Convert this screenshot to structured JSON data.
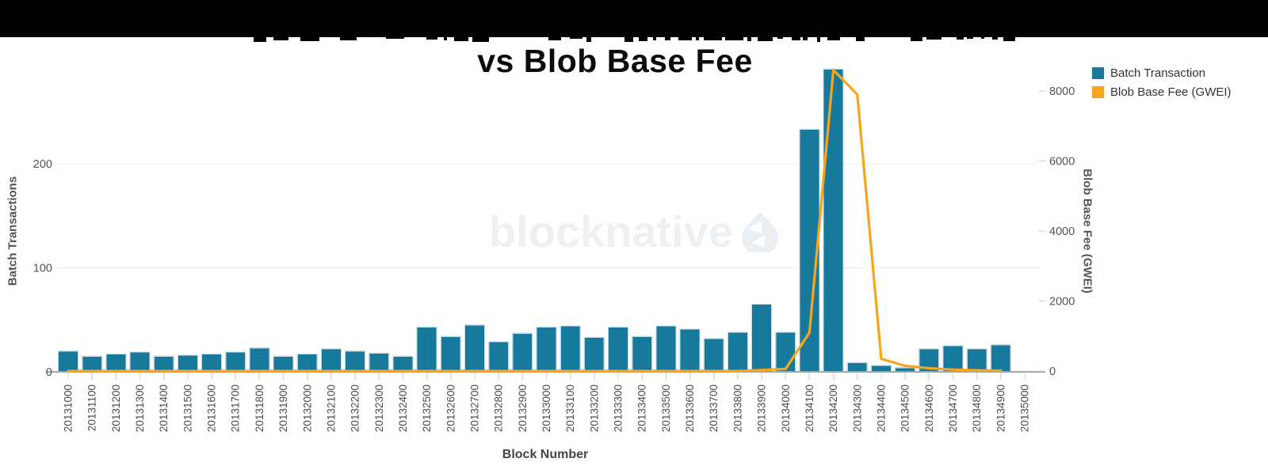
{
  "watermark": {
    "text": "blocknative"
  },
  "chart_data": {
    "type": "bar",
    "title": "vs Blob Base Fee",
    "title_note": "first title line hidden behind black redaction bar",
    "x_axis": {
      "title": "Block Number"
    },
    "left_axis": {
      "title": "Batch Transactions",
      "ticks": [
        0,
        100,
        200
      ],
      "range": [
        0,
        300
      ]
    },
    "right_axis": {
      "title": "Blob Base Fee (GWEI)",
      "ticks": [
        0,
        2000,
        4000,
        6000,
        8000
      ],
      "range": [
        0,
        8900
      ]
    },
    "grid": "horizontal-left-axis",
    "legend_position": "top-right",
    "categories": [
      "20131000",
      "20131100",
      "20131200",
      "20131300",
      "20131400",
      "20131500",
      "20131600",
      "20131700",
      "20131800",
      "20131900",
      "20132000",
      "20132100",
      "20132200",
      "20132300",
      "20132400",
      "20132500",
      "20132600",
      "20132700",
      "20132800",
      "20132900",
      "20133000",
      "20133100",
      "20133200",
      "20133300",
      "20133400",
      "20133500",
      "20133600",
      "20133700",
      "20133800",
      "20133900",
      "20134000",
      "20134100",
      "20134200",
      "20134300",
      "20134400",
      "20134500",
      "20134600",
      "20134700",
      "20134800",
      "20134900",
      "20135000"
    ],
    "series": [
      {
        "name": "Batch Transaction",
        "type": "bar",
        "axis": "left",
        "color": "#17799c",
        "values": [
          20,
          15,
          17,
          19,
          15,
          16,
          17,
          19,
          23,
          15,
          17,
          22,
          20,
          18,
          15,
          43,
          34,
          45,
          29,
          37,
          43,
          44,
          33,
          43,
          34,
          44,
          41,
          32,
          38,
          65,
          38,
          233,
          291,
          9,
          6,
          4,
          22,
          25,
          22,
          26,
          null
        ]
      },
      {
        "name": "Blob Base Fee (GWEI)",
        "type": "line",
        "axis": "right",
        "color": "#f9a41d",
        "values": [
          1,
          1,
          1,
          1,
          1,
          1,
          1,
          1,
          1,
          1,
          1,
          1,
          1,
          1,
          1,
          1,
          1,
          1,
          1,
          1,
          1,
          1,
          1,
          1,
          1,
          1,
          1,
          1,
          1,
          30,
          60,
          1100,
          8600,
          7900,
          350,
          150,
          80,
          40,
          20,
          10,
          null
        ]
      }
    ]
  }
}
